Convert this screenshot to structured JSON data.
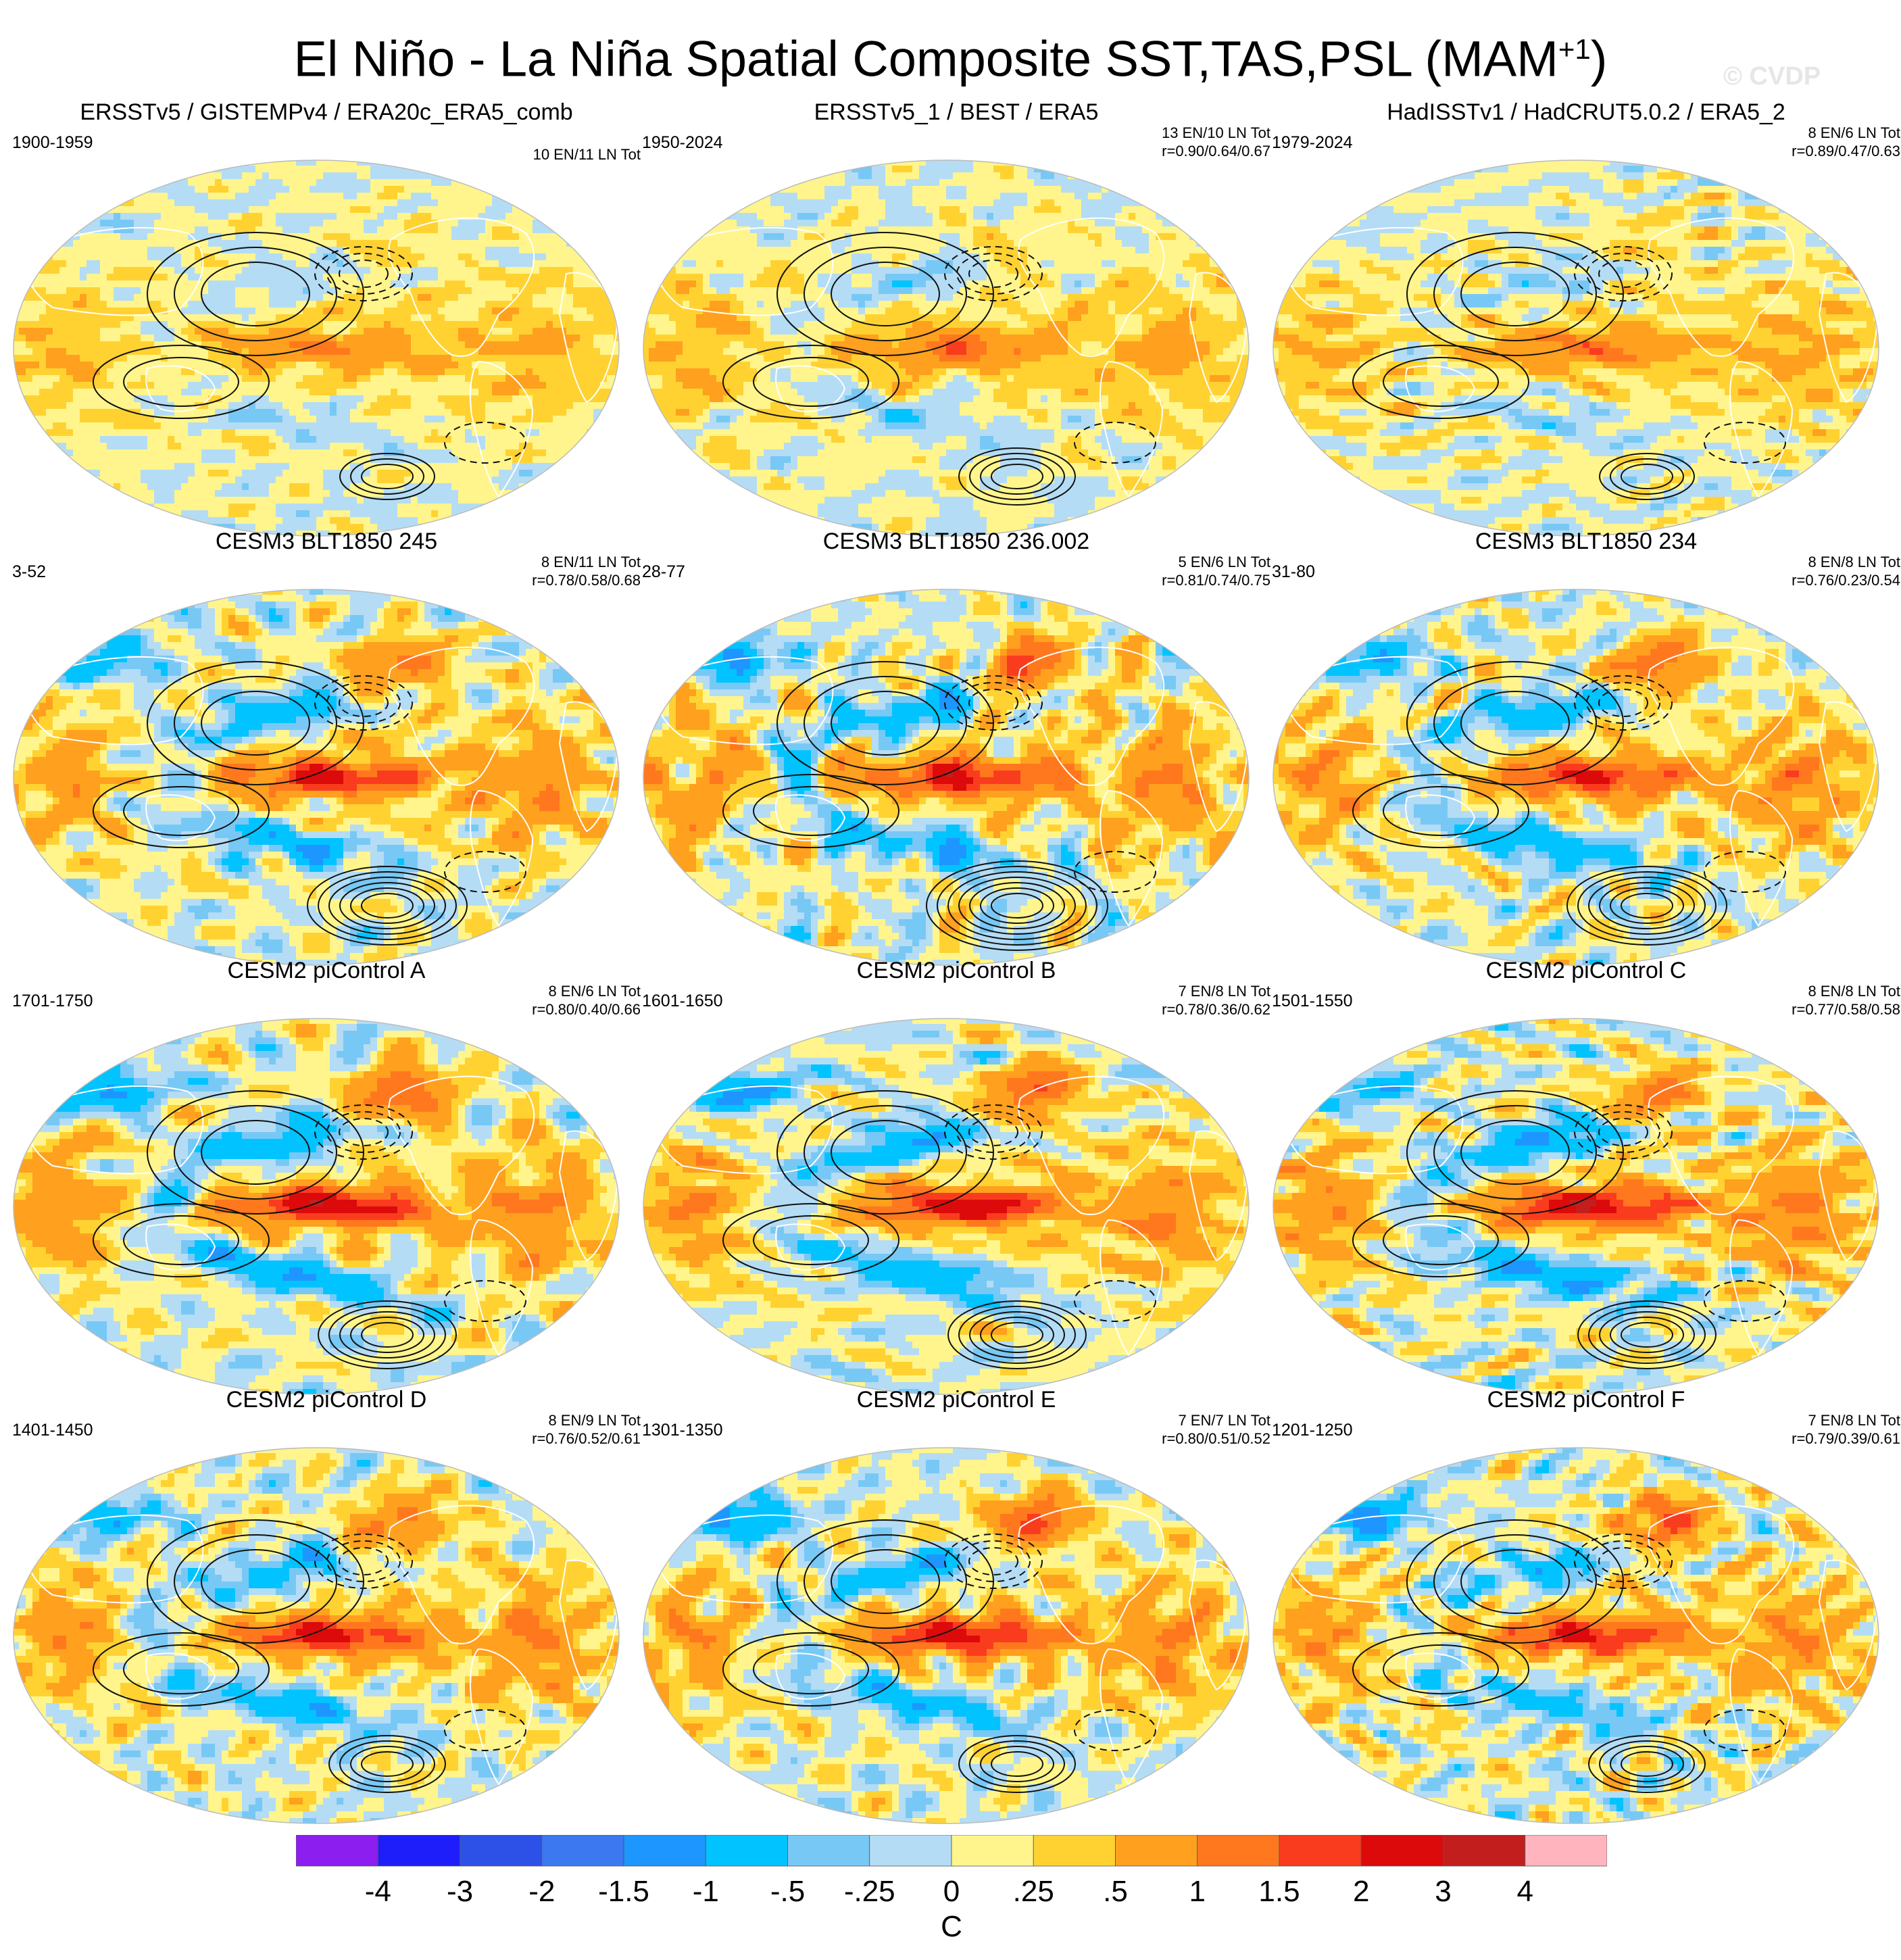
{
  "title": {
    "main": "El Niño - La Niña Spatial Composite SST,TAS,PSL (MAM",
    "superscript": "+1",
    "close": ")"
  },
  "watermark": "© CVDP",
  "panels": [
    {
      "title": "ERSSTv5 / GISTEMPv4 / ERA20c_ERA5_comb",
      "period": "1900-1959",
      "counts": "10 EN/11 LN Tot",
      "corr": ""
    },
    {
      "title": "ERSSTv5_1 / BEST / ERA5",
      "period": "1950-2024",
      "counts": "13 EN/10 LN Tot",
      "corr": "r=0.90/0.64/0.67"
    },
    {
      "title": "HadISSTv1 / HadCRUT5.0.2 / ERA5_2",
      "period": "1979-2024",
      "counts": "8 EN/6 LN Tot",
      "corr": "r=0.89/0.47/0.63"
    },
    {
      "title": "CESM3 BLT1850 245",
      "period": "3-52",
      "counts": "8 EN/11 LN Tot",
      "corr": "r=0.78/0.58/0.68"
    },
    {
      "title": "CESM3 BLT1850 236.002",
      "period": "28-77",
      "counts": "5 EN/6 LN Tot",
      "corr": "r=0.81/0.74/0.75"
    },
    {
      "title": "CESM3 BLT1850 234",
      "period": "31-80",
      "counts": "8 EN/8 LN Tot",
      "corr": "r=0.76/0.23/0.54"
    },
    {
      "title": "CESM2 piControl A",
      "period": "1701-1750",
      "counts": "8 EN/6 LN Tot",
      "corr": "r=0.80/0.40/0.66"
    },
    {
      "title": "CESM2 piControl B",
      "period": "1601-1650",
      "counts": "7 EN/8 LN Tot",
      "corr": "r=0.78/0.36/0.62"
    },
    {
      "title": "CESM2 piControl C",
      "period": "1501-1550",
      "counts": "8 EN/8 LN Tot",
      "corr": "r=0.77/0.58/0.58"
    },
    {
      "title": "CESM2 piControl D",
      "period": "1401-1450",
      "counts": "8 EN/9 LN Tot",
      "corr": "r=0.76/0.52/0.61"
    },
    {
      "title": "CESM2 piControl E",
      "period": "1301-1350",
      "counts": "7 EN/7 LN Tot",
      "corr": "r=0.80/0.51/0.52"
    },
    {
      "title": "CESM2 piControl F",
      "period": "1201-1250",
      "counts": "7 EN/8 LN Tot",
      "corr": "r=0.79/0.39/0.61"
    }
  ],
  "chart_data": {
    "type": "heatmap",
    "title": "El Niño - La Niña Spatial Composite SST,TAS,PSL (MAM+1)",
    "projection": "Robinson (global, Pacific-centered)",
    "fields": [
      "SST/TAS shading",
      "PSL contours"
    ],
    "colorbar": {
      "unit": "C",
      "levels": [
        "-4",
        "-3",
        "-2",
        "-1.5",
        "-1",
        "-.5",
        "-.25",
        "0",
        ".25",
        ".5",
        "1",
        "1.5",
        "2",
        "3",
        "4"
      ],
      "colors": [
        "#8c1ef0",
        "#1e1efa",
        "#2d50e6",
        "#3c78f0",
        "#1e96ff",
        "#00c3ff",
        "#78c8f5",
        "#b4dcf5",
        "#fff58c",
        "#ffd232",
        "#ffa01e",
        "#ff781e",
        "#fa3c1e",
        "#dc0a0a",
        "#c31e1e",
        "#ffb4be"
      ]
    },
    "patterns": [
      {
        "enso": 0.7,
        "pdo": 0.35,
        "na": 0.15,
        "noise": 0.35,
        "seed": 1,
        "low": 1.2
      },
      {
        "enso": 0.9,
        "pdo": 0.45,
        "na": 0.1,
        "noise": 0.3,
        "seed": 2,
        "low": 1.4
      },
      {
        "enso": 0.9,
        "pdo": 0.4,
        "na": 0.2,
        "noise": 0.35,
        "seed": 3,
        "low": 1.3
      },
      {
        "enso": 1.8,
        "pdo": 0.9,
        "na": 1.0,
        "noise": 0.55,
        "seed": 4,
        "low": 2.2
      },
      {
        "enso": 1.9,
        "pdo": 0.9,
        "na": 1.3,
        "noise": 0.6,
        "seed": 5,
        "low": 2.8
      },
      {
        "enso": 1.7,
        "pdo": 0.95,
        "na": 1.2,
        "noise": 0.55,
        "seed": 6,
        "low": 2.4
      },
      {
        "enso": 2.3,
        "pdo": 1.0,
        "na": 1.4,
        "noise": 0.55,
        "seed": 7,
        "low": 2.0
      },
      {
        "enso": 2.1,
        "pdo": 1.0,
        "na": 1.4,
        "noise": 0.55,
        "seed": 8,
        "low": 1.8
      },
      {
        "enso": 2.3,
        "pdo": 1.1,
        "na": 1.0,
        "noise": 0.6,
        "seed": 9,
        "low": 1.9
      },
      {
        "enso": 1.9,
        "pdo": 0.9,
        "na": 1.1,
        "noise": 0.55,
        "seed": 10,
        "low": 1.6
      },
      {
        "enso": 2.0,
        "pdo": 0.9,
        "na": 1.5,
        "noise": 0.55,
        "seed": 11,
        "low": 1.5
      },
      {
        "enso": 1.8,
        "pdo": 0.8,
        "na": 1.4,
        "noise": 0.55,
        "seed": 12,
        "low": 1.4
      }
    ]
  }
}
